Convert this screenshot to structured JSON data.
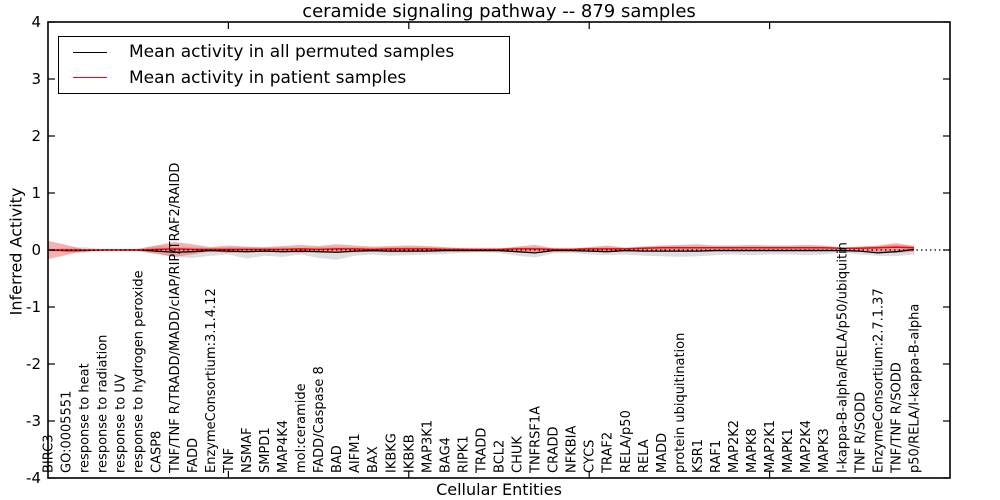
{
  "chart_data": {
    "type": "line",
    "title": "ceramide signaling pathway -- 879 samples",
    "xlabel": "Cellular Entities",
    "ylabel": "Inferred Activity",
    "ylim": [
      -4,
      4
    ],
    "xlim": [
      0,
      50
    ],
    "yticks": [
      -4,
      -3,
      -2,
      -1,
      0,
      1,
      2,
      3,
      4
    ],
    "xticks": [
      10,
      20,
      30,
      40
    ],
    "grid": false,
    "legend_position": "upper left",
    "zero_reference_line": 0,
    "colors": {
      "permuted_line": "#000000",
      "patient_line": "#ff0000",
      "permuted_band": "#c8c8c8",
      "patient_band": "#e85555"
    },
    "categories": [
      "BIRC3",
      "GO:0005551",
      "response to heat",
      "response to radiation",
      "response to UV",
      "response to hydrogen peroxide",
      "CASP8",
      "TNF/TNF R/TRADD/MADD/cIAP/RIP/TRAF2/RAIDD",
      "FADD",
      "EnzymeConsortium:3.1.4.12",
      "TNF",
      "NSMAF",
      "SMPD1",
      "MAP4K4",
      "mol:ceramide",
      "FADD/Caspase 8",
      "BAD",
      "AIFM1",
      "BAX",
      "IKBKG",
      "IKBKB",
      "MAP3K1",
      "BAG4",
      "RIPK1",
      "TRADD",
      "BCL2",
      "CHUK",
      "TNFRSF1A",
      "CRADD",
      "NFKBIA",
      "CYCS",
      "TRAF2",
      "RELA/p50",
      "RELA",
      "MADD",
      "protein ubiquitination",
      "KSR1",
      "RAF1",
      "MAP2K2",
      "MAPK8",
      "MAP2K1",
      "MAPK1",
      "MAP2K4",
      "MAPK3",
      "I-kappa-B-alpha/RELA/p50/ubiquitin",
      "TNF R/SODD",
      "EnzymeConsortium:2.7.1.37",
      "TNF/TNF R/SODD",
      "p50/RELA/I-kappa-B-alpha"
    ],
    "series": [
      {
        "name": "Mean activity in all permuted samples",
        "color": "#000000",
        "values": [
          0.0,
          -0.01,
          -0.01,
          0.0,
          0.0,
          0.0,
          -0.02,
          -0.04,
          -0.03,
          -0.01,
          -0.02,
          -0.03,
          -0.02,
          -0.03,
          -0.02,
          -0.03,
          -0.04,
          -0.02,
          -0.01,
          -0.02,
          -0.02,
          -0.02,
          -0.01,
          -0.01,
          -0.01,
          -0.01,
          -0.03,
          -0.05,
          -0.01,
          -0.01,
          -0.02,
          -0.03,
          -0.01,
          -0.02,
          -0.02,
          -0.02,
          -0.02,
          -0.01,
          -0.01,
          -0.01,
          -0.01,
          -0.01,
          -0.01,
          -0.01,
          -0.01,
          -0.02,
          -0.05,
          -0.03,
          0.01
        ]
      },
      {
        "name": "Mean activity in patient samples",
        "color": "#ff0000",
        "values": [
          0.0,
          0.0,
          0.0,
          0.0,
          0.0,
          0.0,
          0.01,
          0.02,
          0.01,
          0.01,
          0.01,
          0.01,
          0.01,
          0.01,
          0.02,
          0.01,
          0.02,
          0.02,
          0.01,
          0.02,
          0.02,
          0.02,
          0.01,
          0.01,
          0.01,
          0.01,
          0.02,
          0.02,
          0.01,
          0.01,
          0.02,
          0.02,
          0.02,
          0.03,
          0.04,
          0.04,
          0.04,
          0.04,
          0.04,
          0.04,
          0.04,
          0.04,
          0.04,
          0.04,
          0.03,
          0.03,
          0.04,
          0.05,
          0.04
        ]
      }
    ],
    "bands": [
      {
        "name": "permuted samples range",
        "color": "#c8c8c8",
        "opacity": 0.6,
        "upper": [
          0.02,
          0.04,
          0.05,
          0.01,
          0.01,
          0.02,
          0.08,
          0.06,
          0.05,
          0.04,
          0.05,
          0.05,
          0.04,
          0.05,
          0.04,
          0.05,
          0.06,
          0.05,
          0.04,
          0.05,
          0.06,
          0.05,
          0.04,
          0.03,
          0.03,
          0.03,
          0.05,
          0.05,
          0.03,
          0.03,
          0.04,
          0.05,
          0.04,
          0.05,
          0.06,
          0.06,
          0.05,
          0.05,
          0.05,
          0.05,
          0.05,
          0.05,
          0.05,
          0.05,
          0.03,
          0.05,
          0.07,
          0.09,
          0.08
        ],
        "lower": [
          -0.02,
          -0.04,
          -0.05,
          -0.01,
          -0.01,
          -0.02,
          -0.08,
          -0.12,
          -0.14,
          -0.1,
          -0.08,
          -0.15,
          -0.1,
          -0.12,
          -0.08,
          -0.14,
          -0.17,
          -0.1,
          -0.08,
          -0.1,
          -0.09,
          -0.08,
          -0.07,
          -0.05,
          -0.04,
          -0.05,
          -0.1,
          -0.13,
          -0.06,
          -0.05,
          -0.08,
          -0.09,
          -0.08,
          -0.1,
          -0.11,
          -0.12,
          -0.11,
          -0.09,
          -0.08,
          -0.09,
          -0.08,
          -0.08,
          -0.09,
          -0.08,
          -0.04,
          -0.08,
          -0.1,
          -0.11,
          -0.08
        ]
      },
      {
        "name": "patient samples range",
        "color": "#e85555",
        "opacity": 0.45,
        "upper": [
          0.16,
          0.09,
          0.01,
          0.01,
          0.01,
          0.02,
          0.08,
          0.14,
          0.1,
          0.05,
          0.08,
          0.06,
          0.05,
          0.07,
          0.09,
          0.07,
          0.1,
          0.08,
          0.06,
          0.07,
          0.08,
          0.07,
          0.05,
          0.03,
          0.02,
          0.02,
          0.06,
          0.09,
          0.03,
          0.02,
          0.05,
          0.08,
          0.04,
          0.06,
          0.08,
          0.09,
          0.1,
          0.08,
          0.08,
          0.09,
          0.08,
          0.08,
          0.09,
          0.08,
          0.04,
          0.06,
          0.08,
          0.12,
          0.07
        ],
        "lower": [
          -0.16,
          -0.09,
          -0.01,
          -0.01,
          -0.01,
          -0.02,
          -0.06,
          -0.12,
          -0.08,
          -0.02,
          -0.05,
          -0.04,
          -0.03,
          -0.04,
          -0.05,
          -0.03,
          -0.05,
          -0.04,
          -0.03,
          -0.04,
          -0.04,
          -0.03,
          -0.02,
          -0.01,
          -0.01,
          -0.01,
          -0.03,
          -0.04,
          -0.01,
          -0.01,
          -0.02,
          -0.03,
          -0.02,
          -0.02,
          -0.03,
          -0.03,
          -0.03,
          -0.02,
          -0.02,
          -0.02,
          -0.02,
          -0.02,
          -0.02,
          -0.02,
          -0.01,
          -0.02,
          -0.04,
          -0.05,
          -0.03
        ]
      }
    ]
  }
}
